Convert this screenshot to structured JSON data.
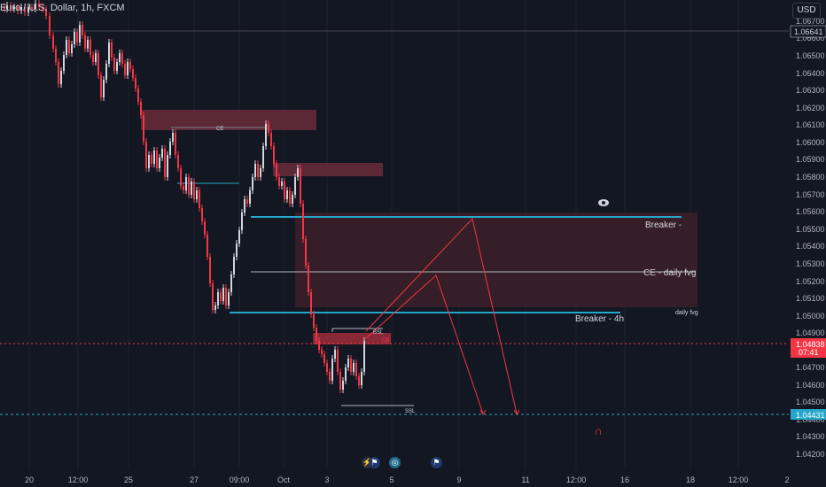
{
  "header": {
    "symbol": "Euro / U.S. Dollar, 1h, FXCM",
    "currency_button": "USD"
  },
  "price_axis": {
    "ticks": [
      "1.06700",
      "1.06600",
      "1.06500",
      "1.06400",
      "1.06300",
      "1.06200",
      "1.06100",
      "1.06000",
      "1.05900",
      "1.05800",
      "1.05700",
      "1.05600",
      "1.05500",
      "1.05400",
      "1.05300",
      "1.05200",
      "1.05100",
      "1.05000",
      "1.04900",
      "1.04700",
      "1.04600",
      "1.04500",
      "1.04400",
      "1.04300",
      "1.04200"
    ],
    "high_line_label": "1.06641",
    "current_price_label": "1.04838",
    "countdown_label": "07:41",
    "low_line_label": "1.04431"
  },
  "time_axis": {
    "ticks": [
      "20",
      "12:00",
      "25",
      "27",
      "09:00",
      "Oct",
      "3",
      "5",
      "9",
      "11",
      "12:00",
      "16",
      "18",
      "12:00",
      "2"
    ]
  },
  "annotations": {
    "breaker": "Breaker -",
    "ce_daily": "CE - daily fvg",
    "breaker_4h": "Breaker - 4h",
    "daily_fvg": "daily fvg",
    "bsl": "BSL",
    "ob": "OB",
    "ssl": "SSL",
    "ce_short": "CE"
  },
  "colors": {
    "background": "#131722",
    "bull": "#d1d4dc",
    "bear": "#f23645",
    "zone": "#5c2a35",
    "level_line": "#26a6c9",
    "projection": "#f23645"
  },
  "icons": [
    "eye-icon",
    "magnet-icon",
    "flash-icon",
    "flag-icon",
    "globe-icon"
  ]
}
